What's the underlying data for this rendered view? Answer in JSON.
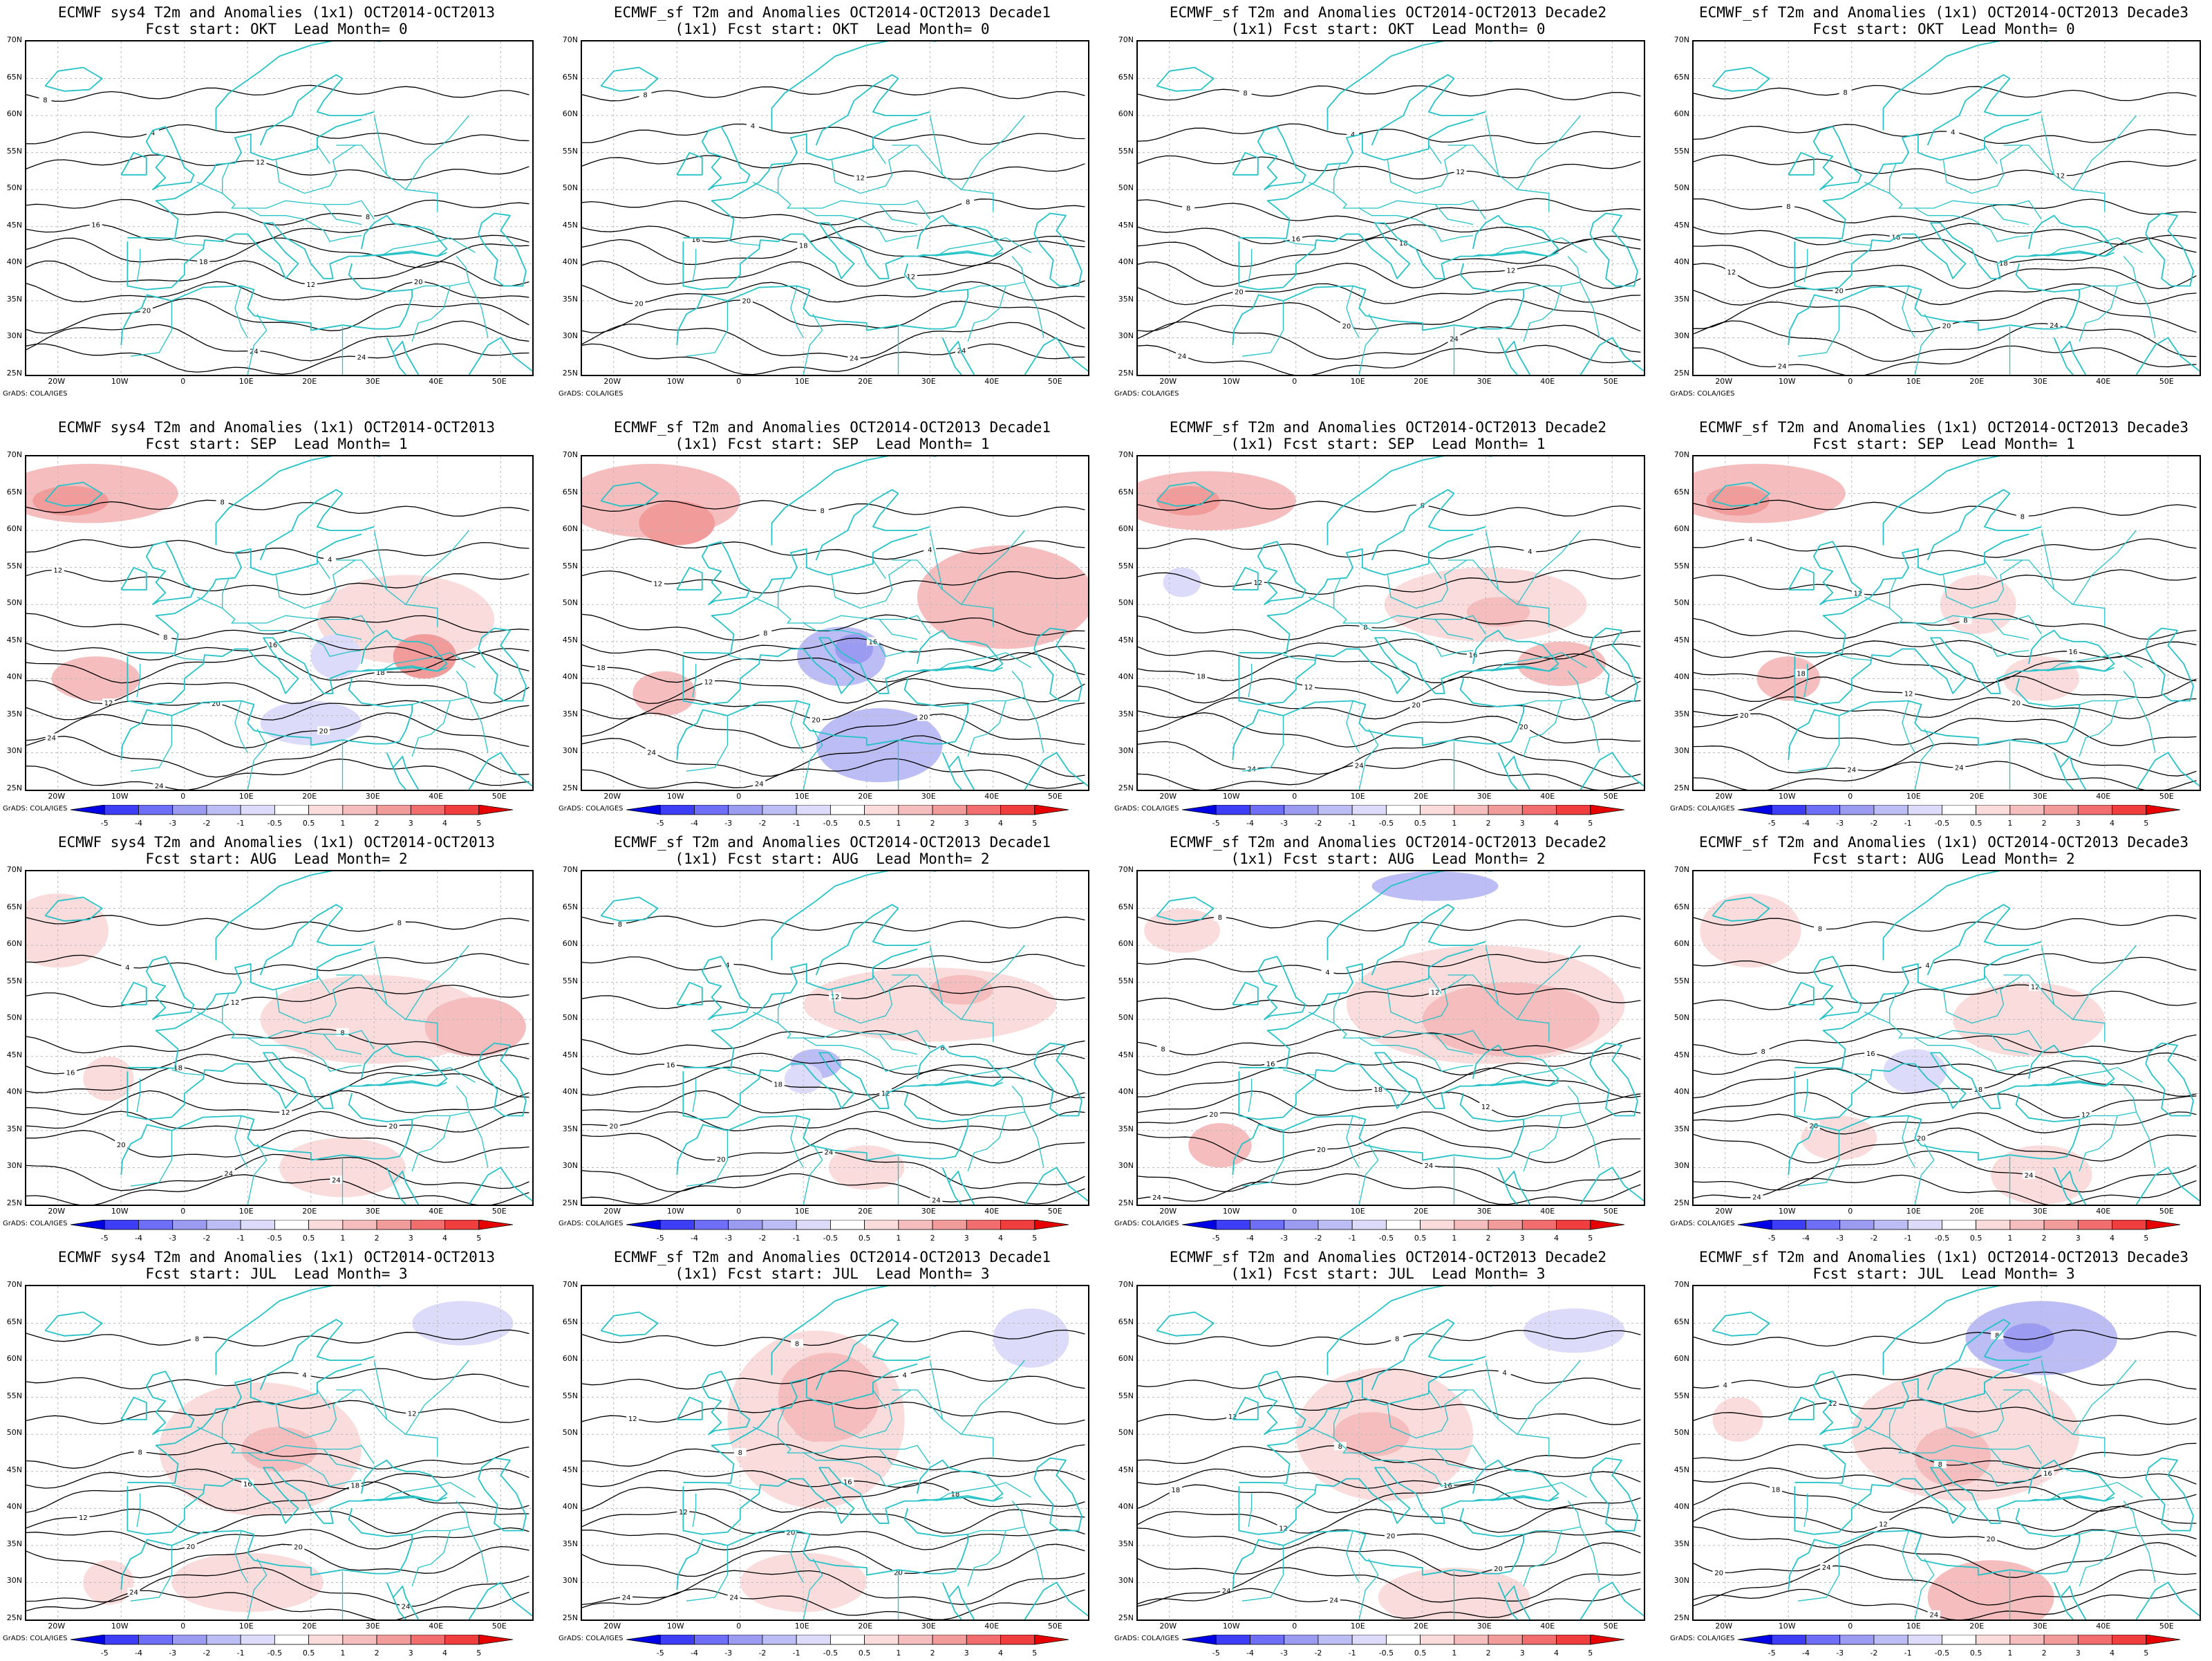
{
  "credit": "GrADS: COLA/IGES",
  "lat_labels": [
    "70N",
    "65N",
    "60N",
    "55N",
    "50N",
    "45N",
    "40N",
    "35N",
    "30N",
    "25N"
  ],
  "lon_labels": [
    "20W",
    "10W",
    "0",
    "10E",
    "20E",
    "30E",
    "40E",
    "50E"
  ],
  "colorbar": {
    "labels": [
      "-5",
      "-4",
      "-3",
      "-2",
      "-1",
      "-0.5",
      "0.5",
      "1",
      "2",
      "3",
      "4",
      "5"
    ],
    "colors": [
      "#0000e6",
      "#3d3df5",
      "#6e6ef7",
      "#9b9bf2",
      "#bdbdf5",
      "#dcdcfa",
      "#ffffff",
      "#fadcdc",
      "#f5bdbd",
      "#f29b9b",
      "#f26e6e",
      "#f03d3d",
      "#e60000"
    ]
  },
  "contour_color": "#000000",
  "coast_color": "#25c2c8",
  "panels": [
    {
      "title1": "ECMWF sys4 T2m and Anomalies (1x1) OCT2014-OCT2013",
      "title2": "Fcst start: OKT  Lead Month= 0",
      "colorbar": false
    },
    {
      "title1": "ECMWF_sf T2m and Anomalies OCT2014-OCT2013 Decade1",
      "title2": "(1x1) Fcst start: OKT  Lead Month= 0",
      "colorbar": false
    },
    {
      "title1": "ECMWF_sf T2m and Anomalies OCT2014-OCT2013 Decade2",
      "title2": "(1x1) Fcst start: OKT  Lead Month= 0",
      "colorbar": false
    },
    {
      "title1": "ECMWF_sf T2m and Anomalies (1x1) OCT2014-OCT2013 Decade3",
      "title2": "Fcst start: OKT  Lead Month= 0",
      "colorbar": false
    },
    {
      "title1": "ECMWF sys4 T2m and Anomalies (1x1) OCT2014-OCT2013",
      "title2": "Fcst start: SEP  Lead Month= 1",
      "colorbar": true
    },
    {
      "title1": "ECMWF_sf T2m and Anomalies OCT2014-OCT2013 Decade1",
      "title2": "(1x1) Fcst start: SEP  Lead Month= 1",
      "colorbar": true
    },
    {
      "title1": "ECMWF_sf T2m and Anomalies OCT2014-OCT2013 Decade2",
      "title2": "(1x1) Fcst start: SEP  Lead Month= 1",
      "colorbar": true
    },
    {
      "title1": "ECMWF_sf T2m and Anomalies (1x1) OCT2014-OCT2013 Decade3",
      "title2": "Fcst start: SEP  Lead Month= 1",
      "colorbar": true
    },
    {
      "title1": "ECMWF sys4 T2m and Anomalies (1x1) OCT2014-OCT2013",
      "title2": "Fcst start: AUG  Lead Month= 2",
      "colorbar": true
    },
    {
      "title1": "ECMWF_sf T2m and Anomalies OCT2014-OCT2013 Decade1",
      "title2": "(1x1) Fcst start: AUG  Lead Month= 2",
      "colorbar": true
    },
    {
      "title1": "ECMWF_sf T2m and Anomalies OCT2014-OCT2013 Decade2",
      "title2": "(1x1) Fcst start: AUG  Lead Month= 2",
      "colorbar": true
    },
    {
      "title1": "ECMWF_sf T2m and Anomalies (1x1) OCT2014-OCT2013 Decade3",
      "title2": "Fcst start: AUG  Lead Month= 2",
      "colorbar": true
    },
    {
      "title1": "ECMWF sys4 T2m and Anomalies (1x1) OCT2014-OCT2013",
      "title2": "Fcst start: JUL  Lead Month= 3",
      "colorbar": true
    },
    {
      "title1": "ECMWF_sf T2m and Anomalies OCT2014-OCT2013 Decade1",
      "title2": "(1x1) Fcst start: JUL  Lead Month= 3",
      "colorbar": true
    },
    {
      "title1": "ECMWF_sf T2m and Anomalies OCT2014-OCT2013 Decade2",
      "title2": "(1x1) Fcst start: JUL  Lead Month= 3",
      "colorbar": true
    },
    {
      "title1": "ECMWF_sf T2m and Anomalies (1x1) OCT2014-OCT2013 Decade3",
      "title2": "Fcst start: JUL  Lead Month= 3",
      "colorbar": true
    }
  ]
}
